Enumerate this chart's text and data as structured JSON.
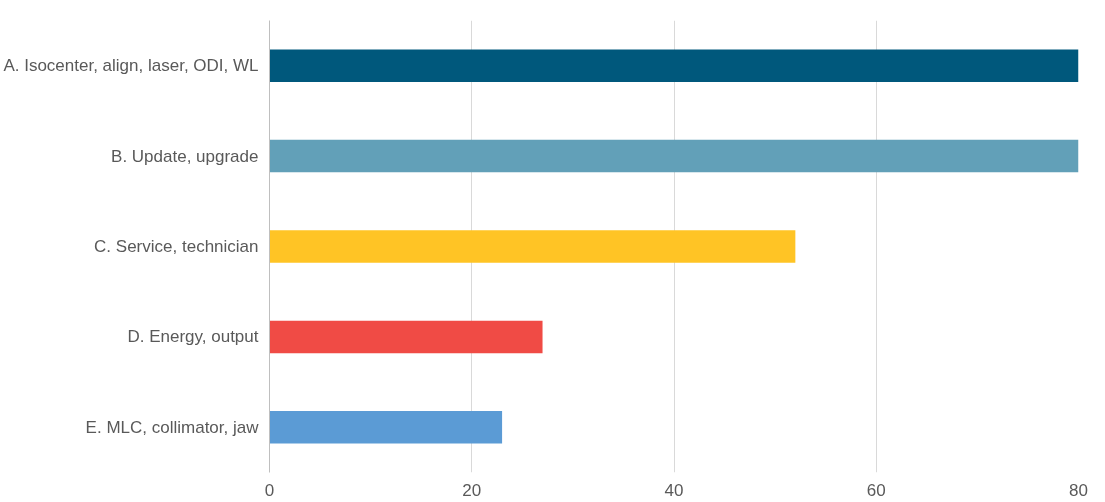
{
  "chart_data": {
    "type": "bar",
    "orientation": "horizontal",
    "categories": [
      "A. Isocenter, align, laser, ODI, WL",
      "B. Update, upgrade",
      "C. Service, technician",
      "D. Energy, output",
      "E. MLC, collimator, jaw"
    ],
    "values": [
      80,
      80,
      52,
      27,
      23
    ],
    "colors": [
      "#00587c",
      "#62a0b8",
      "#ffc425",
      "#f04b45",
      "#5b9bd5"
    ],
    "xlim": [
      0,
      80
    ],
    "xticks": [
      0,
      20,
      40,
      60,
      80
    ],
    "grid": "x"
  }
}
